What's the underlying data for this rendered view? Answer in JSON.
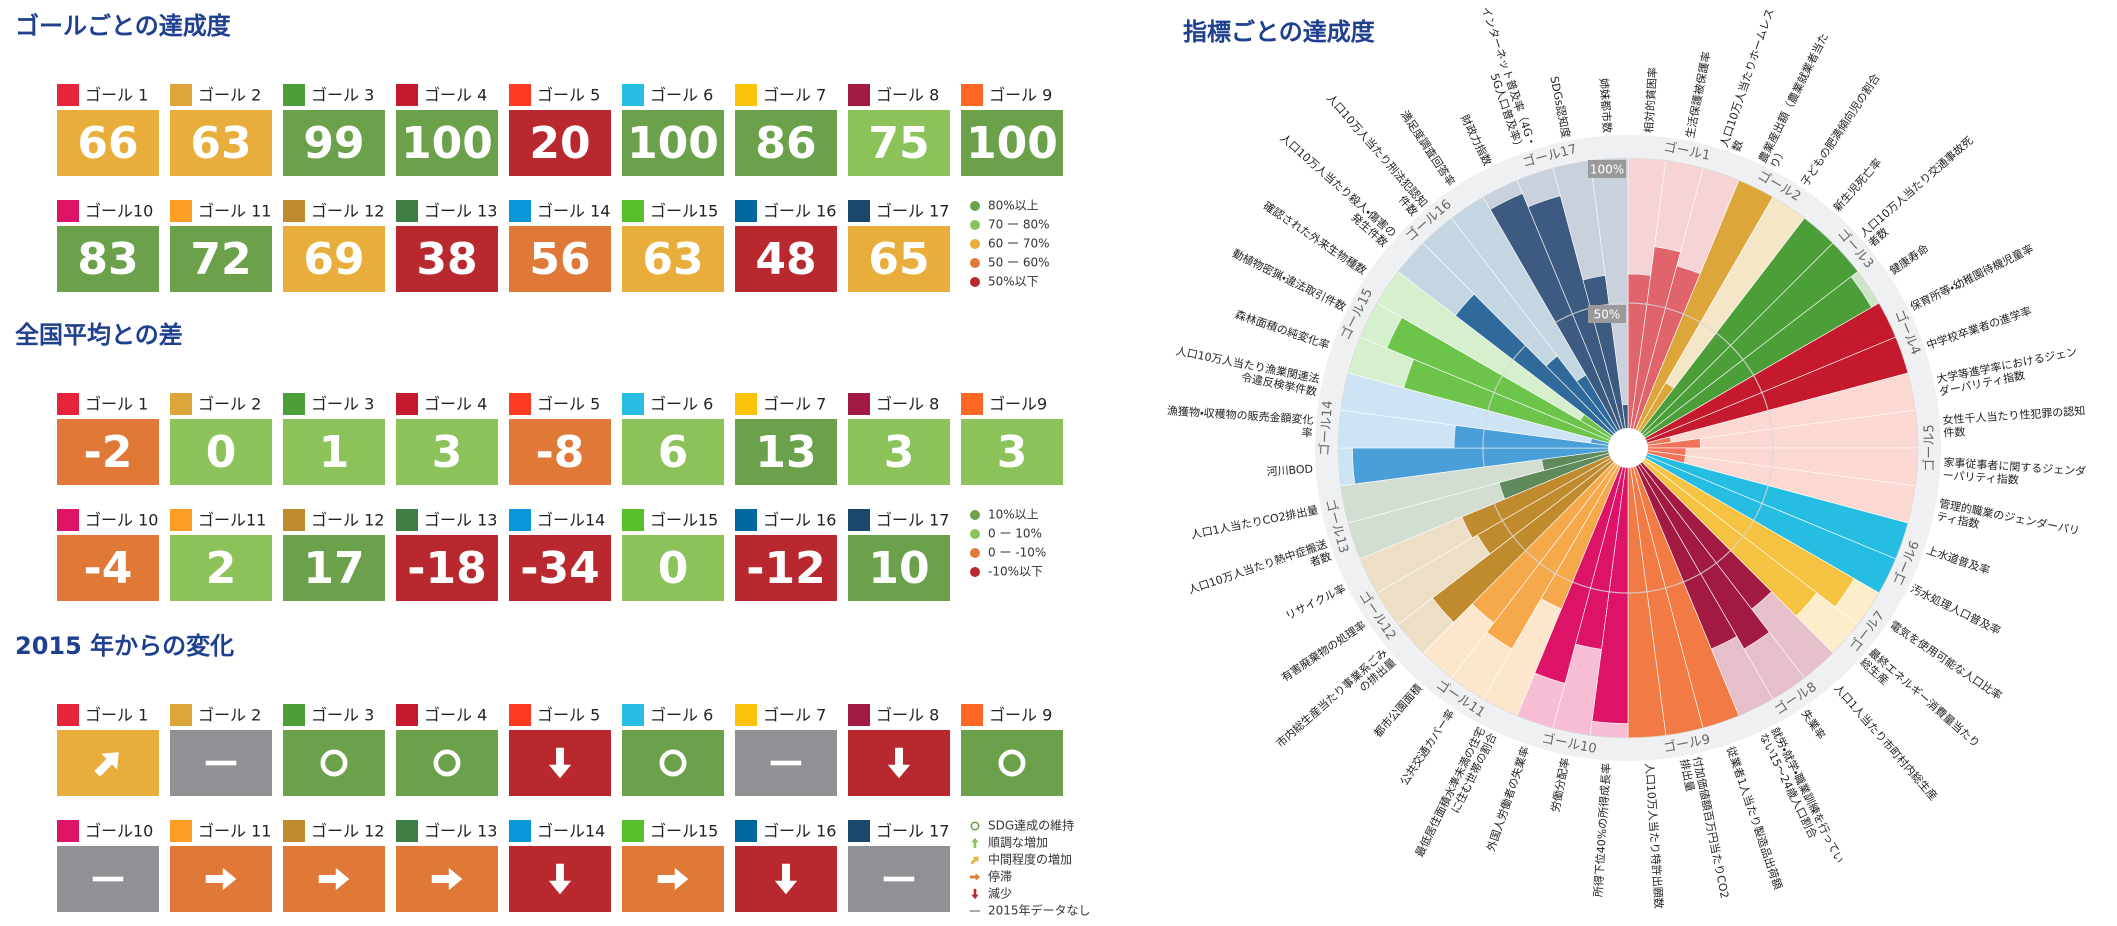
{
  "goal_icon_colors": [
    "#e5243b",
    "#dda63a",
    "#4c9f38",
    "#c5192d",
    "#ff3a21",
    "#26bde2",
    "#fcc30b",
    "#a21942",
    "#fd6925",
    "#dd1367",
    "#fd9d24",
    "#bf8b2e",
    "#3f7e44",
    "#0a97d9",
    "#56c02b",
    "#00689d",
    "#19486a"
  ],
  "sections": [
    {
      "title": "ゴールごとの達成度",
      "tiles": [
        {
          "label": "ゴール 1",
          "value": 66,
          "color": "#e9ad3b"
        },
        {
          "label": "ゴール 2",
          "value": 63,
          "color": "#e9ad3b"
        },
        {
          "label": "ゴール 3",
          "value": 99,
          "color": "#6aa14a"
        },
        {
          "label": "ゴール 4",
          "value": 100,
          "color": "#6aa14a"
        },
        {
          "label": "ゴール 5",
          "value": 20,
          "color": "#b8282e"
        },
        {
          "label": "ゴール 6",
          "value": 100,
          "color": "#6aa14a"
        },
        {
          "label": "ゴール 7",
          "value": 86,
          "color": "#6aa14a"
        },
        {
          "label": "ゴール 8",
          "value": 75,
          "color": "#8cc25a"
        },
        {
          "label": "ゴール 9",
          "value": 100,
          "color": "#6aa14a"
        },
        {
          "label": "ゴール10",
          "value": 83,
          "color": "#6aa14a"
        },
        {
          "label": "ゴール 11",
          "value": 72,
          "color": "#6aa14a"
        },
        {
          "label": "ゴール 12",
          "value": 69,
          "color": "#e9ad3b"
        },
        {
          "label": "ゴール 13",
          "value": 38,
          "color": "#b8282e"
        },
        {
          "label": "ゴール 14",
          "value": 56,
          "color": "#e07838"
        },
        {
          "label": "ゴール15",
          "value": 63,
          "color": "#e9ad3b"
        },
        {
          "label": "ゴール 16",
          "value": 48,
          "color": "#b8282e"
        },
        {
          "label": "ゴール 17",
          "value": 65,
          "color": "#e9ad3b"
        }
      ],
      "legend": [
        {
          "label": "80%以上",
          "color": "#6aa14a"
        },
        {
          "label": "70 ー 80%",
          "color": "#8cc25a"
        },
        {
          "label": "60 ー 70%",
          "color": "#e9ad3b"
        },
        {
          "label": "50 ー 60%",
          "color": "#e07838"
        },
        {
          "label": "50%以下",
          "color": "#b8282e"
        }
      ]
    },
    {
      "title": "全国平均との差",
      "tiles": [
        {
          "label": "ゴール 1",
          "value": -2,
          "color": "#e07838"
        },
        {
          "label": "ゴール 2",
          "value": 0,
          "color": "#8cc25a"
        },
        {
          "label": "ゴール 3",
          "value": 1,
          "color": "#8cc25a"
        },
        {
          "label": "ゴール 4",
          "value": 3,
          "color": "#8cc25a"
        },
        {
          "label": "ゴール 5",
          "value": -8,
          "color": "#e07838"
        },
        {
          "label": "ゴール 6",
          "value": 6,
          "color": "#8cc25a"
        },
        {
          "label": "ゴール 7",
          "value": 13,
          "color": "#6aa14a"
        },
        {
          "label": "ゴール 8",
          "value": 3,
          "color": "#8cc25a"
        },
        {
          "label": "ゴール9",
          "value": 3,
          "color": "#8cc25a"
        },
        {
          "label": "ゴール 10",
          "value": -4,
          "color": "#e07838"
        },
        {
          "label": "ゴール11",
          "value": 2,
          "color": "#8cc25a"
        },
        {
          "label": "ゴール 12",
          "value": 17,
          "color": "#6aa14a"
        },
        {
          "label": "ゴール 13",
          "value": -18,
          "color": "#b8282e"
        },
        {
          "label": "ゴール14",
          "value": -34,
          "color": "#b8282e"
        },
        {
          "label": "ゴール15",
          "value": 0,
          "color": "#8cc25a"
        },
        {
          "label": "ゴール 16",
          "value": -12,
          "color": "#b8282e"
        },
        {
          "label": "ゴール 17",
          "value": 10,
          "color": "#6aa14a"
        }
      ],
      "legend": [
        {
          "label": "10%以上",
          "color": "#6aa14a"
        },
        {
          "label": "0 ー 10%",
          "color": "#8cc25a"
        },
        {
          "label": "0 ー -10%",
          "color": "#e07838"
        },
        {
          "label": "-10%以下",
          "color": "#b8282e"
        }
      ]
    },
    {
      "title": "2015 年からの変化",
      "tiles": [
        {
          "label": "ゴール 1",
          "icon": "up-right",
          "color": "#e9ad3b"
        },
        {
          "label": "ゴール 2",
          "icon": "dash",
          "color": "#8f9194"
        },
        {
          "label": "ゴール 3",
          "icon": "circle",
          "color": "#6aa14a"
        },
        {
          "label": "ゴール 4",
          "icon": "circle",
          "color": "#6aa14a"
        },
        {
          "label": "ゴール 5",
          "icon": "down",
          "color": "#b8282e"
        },
        {
          "label": "ゴール 6",
          "icon": "circle",
          "color": "#6aa14a"
        },
        {
          "label": "ゴール 7",
          "icon": "dash",
          "color": "#8f9194"
        },
        {
          "label": "ゴール 8",
          "icon": "down",
          "color": "#b8282e"
        },
        {
          "label": "ゴール 9",
          "icon": "circle",
          "color": "#6aa14a"
        },
        {
          "label": "ゴール10",
          "icon": "dash",
          "color": "#8f9194"
        },
        {
          "label": "ゴール 11",
          "icon": "right",
          "color": "#e07838"
        },
        {
          "label": "ゴール 12",
          "icon": "right",
          "color": "#e07838"
        },
        {
          "label": "ゴール 13",
          "icon": "right",
          "color": "#e07838"
        },
        {
          "label": "ゴール14",
          "icon": "down",
          "color": "#b8282e"
        },
        {
          "label": "ゴール15",
          "icon": "right",
          "color": "#e07838"
        },
        {
          "label": "ゴール 16",
          "icon": "down",
          "color": "#b8282e"
        },
        {
          "label": "ゴール 17",
          "icon": "dash",
          "color": "#8f9194"
        }
      ],
      "legend": [
        {
          "label": "SDG達成の維持",
          "icon": "circle",
          "color": "#6aa14a"
        },
        {
          "label": "順調な増加",
          "icon": "up",
          "color": "#8cc25a"
        },
        {
          "label": "中間程度の増加",
          "icon": "up-right",
          "color": "#e9ad3b"
        },
        {
          "label": "停滞",
          "icon": "right",
          "color": "#e07838"
        },
        {
          "label": "減少",
          "icon": "down",
          "color": "#b8282e"
        },
        {
          "label": "2015年データなし",
          "icon": "dash",
          "color": "#8f9194"
        }
      ]
    }
  ],
  "chart_data": {
    "type": "radial_bar",
    "title": "指標ごとの達成度",
    "ylim": [
      0,
      100
    ],
    "yticks": [
      {
        "value": 50,
        "label": "50%"
      },
      {
        "value": 100,
        "label": "100%"
      }
    ],
    "series": [
      {
        "name": "ゴール1",
        "color": "#e0646c",
        "categories": [
          "相対的貧困率",
          "生活保護被保護率",
          "人口10万人当たりホームレス数"
        ],
        "values": [
          60,
          70,
          65
        ]
      },
      {
        "name": "ゴール2",
        "color": "#dda63a",
        "categories": [
          "農業産出額（農業就業者当たり）",
          "子どもの肥満傾向児の割合"
        ],
        "values": [
          100,
          26
        ]
      },
      {
        "name": "ゴール3",
        "color": "#4c9f38",
        "categories": [
          "新生児死亡率",
          "人口10万人当たり交通事故死者数",
          "健康寿命"
        ],
        "values": [
          100,
          100,
          97
        ]
      },
      {
        "name": "ゴール4",
        "color": "#c5192d",
        "categories": [
          "保育所等・幼稚園待機児童率",
          "中学校卒業者の進学率"
        ],
        "values": [
          100,
          100
        ]
      },
      {
        "name": "ゴール5",
        "color": "#f0735a",
        "categories": [
          "大学等進学率におけるジェンダーパリティ指数",
          "女性千人当たり性犯罪の認知件数",
          "家事従事者に関するジェンダーパリティ指数",
          "管理的職業のジェンダーパリティ指数"
        ],
        "values": [
          15,
          25,
          20,
          20
        ]
      },
      {
        "name": "ゴール6",
        "color": "#26bde2",
        "categories": [
          "上水道普及率",
          "汚水処理人口普及率"
        ],
        "values": [
          100,
          100
        ]
      },
      {
        "name": "ゴール7",
        "color": "#f5c242",
        "categories": [
          "電気を使用可能な人口比率",
          "最終エネルギー消費量当たり総生産"
        ],
        "values": [
          90,
          82
        ]
      },
      {
        "name": "ゴール8",
        "color": "#a21942",
        "categories": [
          "人口1人当たり市町村内総生産",
          "失業率",
          "就労・就学・職業訓練を行っていない15～24歳人口割合"
        ],
        "values": [
          70,
          80,
          75
        ]
      },
      {
        "name": "ゴール9",
        "color": "#f27a45",
        "categories": [
          "従業者1人当たり製造品出荷額",
          "付加価値額百万円当たりCO2排出量",
          "人口10万人当たり特許出願数"
        ],
        "values": [
          100,
          100,
          100
        ]
      },
      {
        "name": "ゴール10",
        "color": "#dd1367",
        "categories": [
          "所得下位40%の所得成長率",
          "労働分配率",
          "外国人労働者の失業率"
        ],
        "values": [
          95,
          70,
          84
        ]
      },
      {
        "name": "ゴール11",
        "color": "#f5a94a",
        "categories": [
          "最低居住面積水準未満の住宅に住む世帯の割合",
          "公共交通カバー率",
          "都市公園面積"
        ],
        "values": [
          60,
          80,
          76
        ]
      },
      {
        "name": "ゴール12",
        "color": "#bf8b2e",
        "categories": [
          "市内総生産当たり事業系ごみの排出量",
          "有害廃棄物の処理率",
          "リサイクル率"
        ],
        "values": [
          85,
          60,
          62
        ]
      },
      {
        "name": "ゴール13",
        "color": "#5f8a5b",
        "categories": [
          "人口10万人当たり熱中症搬送者数",
          "人口1人当たりCO2排出量"
        ],
        "values": [
          46,
          30
        ]
      },
      {
        "name": "ゴール14",
        "color": "#4a9fd9",
        "categories": [
          "河川BOD",
          "漁獲物・収穫物の販売金額変化率",
          "人口10万人当たり漁業関連法令違反検挙件数"
        ],
        "values": [
          95,
          60,
          13
        ]
      },
      {
        "name": "ゴール15",
        "color": "#6cc44a",
        "categories": [
          "森林面積の純変化率",
          "動植物密猟・違法取引件数",
          "確認された外来生物種数"
        ],
        "values": [
          80,
          90,
          19
        ]
      },
      {
        "name": "ゴール16",
        "color": "#2f6a9a",
        "categories": [
          "人口10万人当たり殺人・傷害の発生件数",
          "人口10万人当たり刑法犯認知件数",
          "満足度調査回答率"
        ],
        "values": [
          75,
          40,
          29
        ]
      },
      {
        "name": "ゴール17",
        "color": "#3d5a80",
        "categories": [
          "財政力指数",
          "インターネット普及率（4G・5G人口普及率）",
          "SDGs認知度",
          "姉妹都市数"
        ],
        "values": [
          95,
          90,
          60,
          15
        ]
      }
    ]
  }
}
